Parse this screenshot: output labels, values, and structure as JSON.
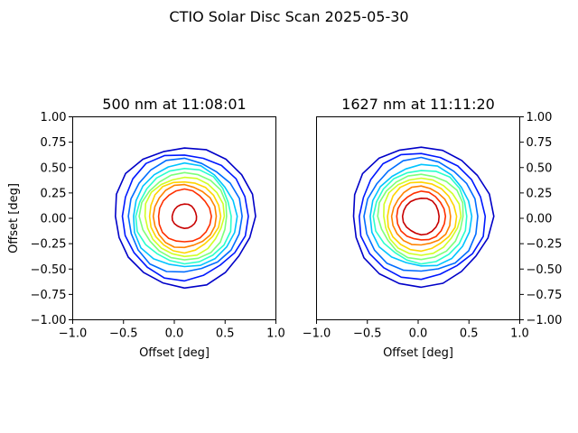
{
  "figure": {
    "title": "CTIO Solar Disc Scan 2025-05-30"
  },
  "chart_data": [
    {
      "type": "contour",
      "title": "500 nm at 11:08:01",
      "xlabel": "Offset [deg]",
      "ylabel": "Offset [deg]",
      "xlim": [
        -1.0,
        1.0
      ],
      "ylim": [
        -1.0,
        1.0
      ],
      "xticks": [
        "−1.0",
        "−0.5",
        "0.0",
        "0.5",
        "1.0"
      ],
      "yticks": [
        "−1.00",
        "−0.75",
        "−0.50",
        "−0.25",
        "0.00",
        "0.25",
        "0.50",
        "0.75",
        "1.00"
      ],
      "yaxis_side": "left",
      "colormap": "jet",
      "center": [
        0.1,
        0.02
      ],
      "levels": [
        {
          "color": "#0000c8",
          "radius": 0.69
        },
        {
          "color": "#0018ff",
          "radius": 0.62
        },
        {
          "color": "#006cff",
          "radius": 0.56
        },
        {
          "color": "#00c4ff",
          "radius": 0.51
        },
        {
          "color": "#2affcc",
          "radius": 0.47
        },
        {
          "color": "#7dff7a",
          "radius": 0.43
        },
        {
          "color": "#d0ff26",
          "radius": 0.39
        },
        {
          "color": "#ffd400",
          "radius": 0.35
        },
        {
          "color": "#ff8200",
          "radius": 0.31
        },
        {
          "color": "#ff3000",
          "radius": 0.26
        },
        {
          "color": "#c80000",
          "radius": 0.12
        }
      ]
    },
    {
      "type": "contour",
      "title": "1627 nm at 11:11:20",
      "xlabel": "Offset [deg]",
      "ylabel": "",
      "xlim": [
        -1.0,
        1.0
      ],
      "ylim": [
        -1.0,
        1.0
      ],
      "xticks": [
        "−1.0",
        "−0.5",
        "0.0",
        "0.5",
        "1.0"
      ],
      "yticks": [
        "−1.00",
        "−0.75",
        "−0.50",
        "−0.25",
        "0.00",
        "0.25",
        "0.50",
        "0.75",
        "1.00"
      ],
      "yaxis_side": "right",
      "colormap": "jet",
      "center": [
        0.03,
        0.02
      ],
      "levels": [
        {
          "color": "#0000c8",
          "radius": 0.69
        },
        {
          "color": "#0018ff",
          "radius": 0.62
        },
        {
          "color": "#006cff",
          "radius": 0.56
        },
        {
          "color": "#00c4ff",
          "radius": 0.5
        },
        {
          "color": "#2affcc",
          "radius": 0.46
        },
        {
          "color": "#7dff7a",
          "radius": 0.42
        },
        {
          "color": "#d0ff26",
          "radius": 0.38
        },
        {
          "color": "#ffd400",
          "radius": 0.34
        },
        {
          "color": "#ff8200",
          "radius": 0.29
        },
        {
          "color": "#ff3000",
          "radius": 0.24
        },
        {
          "color": "#c80000",
          "radius": 0.18
        }
      ]
    }
  ]
}
